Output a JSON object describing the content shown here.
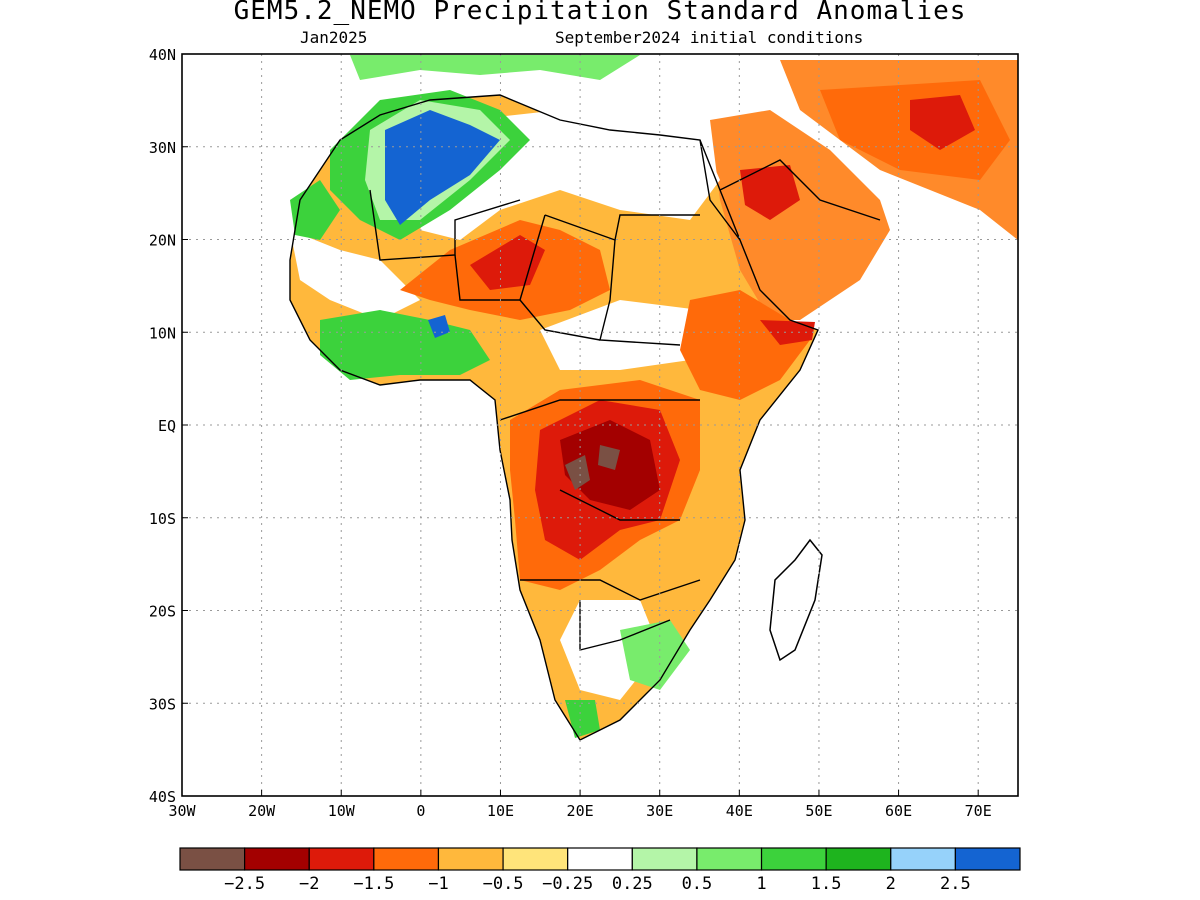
{
  "title": "GEM5.2_NEMO Precipitation Standard Anomalies",
  "subtitle_left": "Jan2025",
  "subtitle_right": "September2024 initial conditions",
  "axes": {
    "x_ticks": [
      "30W",
      "20W",
      "10W",
      "0",
      "10E",
      "20E",
      "30E",
      "40E",
      "50E",
      "60E",
      "70E"
    ],
    "y_ticks": [
      "40N",
      "30N",
      "20N",
      "10N",
      "EQ",
      "10S",
      "20S",
      "30S",
      "40S"
    ]
  },
  "colorbar": {
    "colors": [
      "#7a5044",
      "#a30000",
      "#dd1a0a",
      "#ff6a0a",
      "#ffb83c",
      "#ffe47a",
      "#ffffff",
      "#b4f5a8",
      "#78ec6c",
      "#3cd23c",
      "#1eb41e",
      "#96d2fa",
      "#1464d2"
    ],
    "labels": [
      "-2.5",
      "-2",
      "-1.5",
      "-1",
      "-0.5",
      "-0.25",
      "0.25",
      "0.5",
      "1",
      "1.5",
      "2",
      "2.5"
    ]
  },
  "regions": [
    {
      "name": "sahara-wet",
      "color": "#3cd23c"
    },
    {
      "name": "sahara-blue",
      "color": "#1464d2"
    },
    {
      "name": "sahel-dry",
      "color": "#ff6a0a"
    },
    {
      "name": "central-africa-dry",
      "color": "#a30000"
    },
    {
      "name": "arabia-dry",
      "color": "#ff6a0a"
    }
  ]
}
